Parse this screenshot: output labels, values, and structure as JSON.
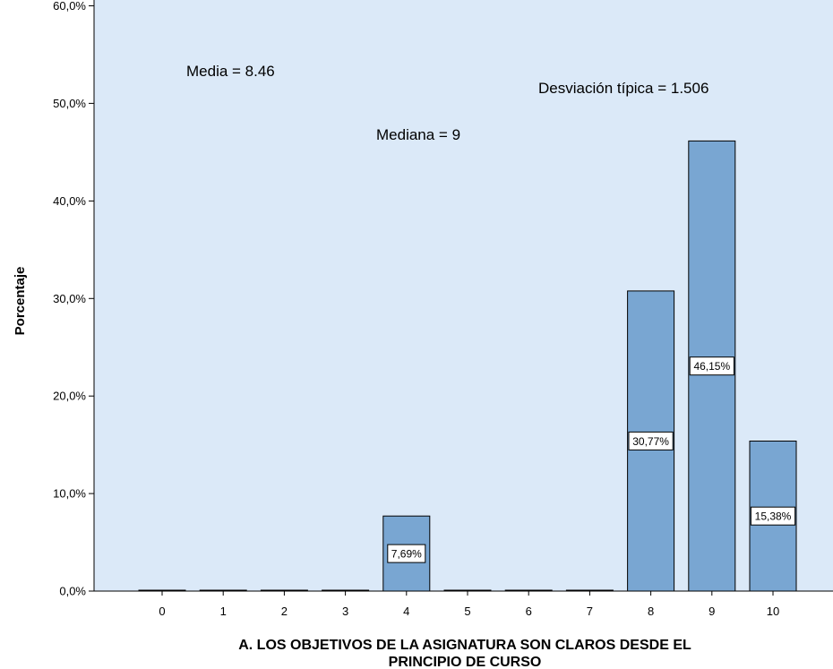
{
  "chart_data": {
    "type": "bar",
    "categories": [
      "0",
      "1",
      "2",
      "3",
      "4",
      "5",
      "6",
      "7",
      "8",
      "9",
      "10"
    ],
    "values": [
      0,
      0,
      0,
      0,
      7.69,
      0,
      0,
      0,
      30.77,
      46.15,
      15.38
    ],
    "data_labels": [
      "",
      "",
      "",
      "",
      "7,69%",
      "",
      "",
      "",
      "30,77%",
      "46,15%",
      "15,38%"
    ],
    "yticks": [
      0,
      10,
      20,
      30,
      40,
      50,
      60
    ],
    "ytick_labels": [
      "0,0%",
      "10,0%",
      "20,0%",
      "30,0%",
      "40,0%",
      "50,0%",
      "60,0%"
    ],
    "ylim": [
      0,
      60.6
    ],
    "ylabel": "Porcentaje",
    "xlabel_lines": [
      "A. LOS OBJETIVOS DE LA ASIGNATURA SON CLAROS DESDE EL",
      "PRINCIPIO DE CURSO"
    ],
    "annotations": {
      "media": "Media = 8.46",
      "mediana": "Mediana = 9",
      "desviacion": "Desviación típica = 1.506"
    },
    "grid": false,
    "colors": {
      "plot_background": "#dbe9f8",
      "bar_fill": "#79a6d2",
      "bar_stroke": "#000000",
      "label_box": "#ffffff"
    }
  }
}
